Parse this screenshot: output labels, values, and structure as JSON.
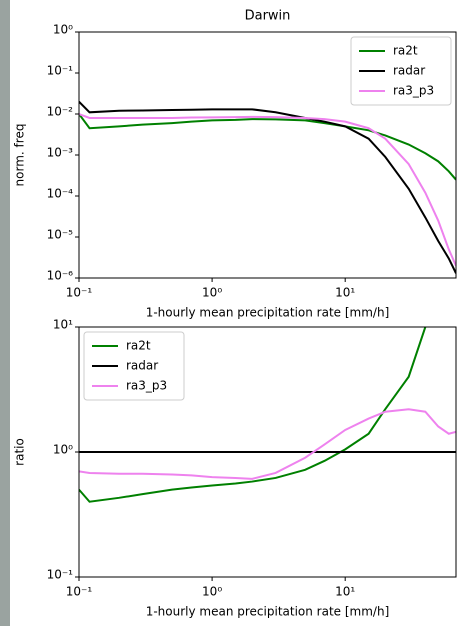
{
  "chart_data": [
    {
      "type": "line",
      "title": "Darwin",
      "xlabel": "1-hourly mean precipitation rate [mm/h]",
      "ylabel": "norm. freq",
      "x": [
        0.1,
        0.12,
        0.2,
        0.3,
        0.5,
        0.7,
        1,
        1.5,
        2,
        3,
        5,
        7,
        10,
        15,
        20,
        30,
        40,
        50,
        60,
        68
      ],
      "series": [
        {
          "name": "ra2t",
          "color": "#008000",
          "values": [
            0.01,
            0.0045,
            0.005,
            0.0055,
            0.006,
            0.0065,
            0.007,
            0.0072,
            0.0075,
            0.0074,
            0.007,
            0.006,
            0.005,
            0.004,
            0.003,
            0.0018,
            0.0011,
            0.0007,
            0.0004,
            0.00025
          ]
        },
        {
          "name": "radar",
          "color": "#000000",
          "values": [
            0.02,
            0.011,
            0.012,
            0.0122,
            0.0125,
            0.0127,
            0.013,
            0.013,
            0.013,
            0.011,
            0.008,
            0.0065,
            0.005,
            0.0025,
            0.0009,
            0.00015,
            3e-05,
            8e-06,
            3e-06,
            1.3e-06
          ]
        },
        {
          "name": "ra3_p3",
          "color": "#ee82ee",
          "values": [
            0.01,
            0.008,
            0.008,
            0.008,
            0.008,
            0.0082,
            0.0083,
            0.0084,
            0.0085,
            0.0084,
            0.008,
            0.0075,
            0.0065,
            0.0045,
            0.0025,
            0.0006,
            0.00012,
            2.5e-05,
            5e-06,
            2e-06
          ]
        }
      ],
      "xlim": [
        0.1,
        68
      ],
      "ylim": [
        1e-06,
        1
      ],
      "xscale": "log",
      "yscale": "log",
      "xticks": [
        {
          "value": 0.1,
          "label": "10⁻¹"
        },
        {
          "value": 1,
          "label": "10⁰"
        },
        {
          "value": 10,
          "label": "10¹"
        }
      ],
      "yticks": [
        {
          "value": 1e-06,
          "label": "10⁻⁶"
        },
        {
          "value": 1e-05,
          "label": "10⁻⁵"
        },
        {
          "value": 0.0001,
          "label": "10⁻⁴"
        },
        {
          "value": 0.001,
          "label": "10⁻³"
        },
        {
          "value": 0.01,
          "label": "10⁻²"
        },
        {
          "value": 0.1,
          "label": "10⁻¹"
        },
        {
          "value": 1,
          "label": "10⁰"
        }
      ],
      "legend": "upper right"
    },
    {
      "type": "line",
      "xlabel": "1-hourly mean precipitation rate [mm/h]",
      "ylabel": "ratio",
      "x": [
        0.1,
        0.12,
        0.2,
        0.3,
        0.5,
        0.7,
        1,
        1.5,
        2,
        3,
        5,
        7,
        10,
        15,
        20,
        30,
        40,
        50,
        60,
        68
      ],
      "series": [
        {
          "name": "ra2t",
          "color": "#008000",
          "values": [
            0.5,
            0.4,
            0.43,
            0.46,
            0.5,
            0.52,
            0.54,
            0.56,
            0.58,
            0.62,
            0.72,
            0.85,
            1.05,
            1.4,
            2.2,
            4,
            10,
            null,
            null,
            null
          ]
        },
        {
          "name": "radar",
          "color": "#000000",
          "values": [
            1,
            1,
            1,
            1,
            1,
            1,
            1,
            1,
            1,
            1,
            1,
            1,
            1,
            1,
            1,
            1,
            1,
            1,
            1,
            1
          ]
        },
        {
          "name": "ra3_p3",
          "color": "#ee82ee",
          "values": [
            0.7,
            0.68,
            0.67,
            0.67,
            0.66,
            0.65,
            0.63,
            0.62,
            0.61,
            0.68,
            0.9,
            1.15,
            1.5,
            1.85,
            2.1,
            2.2,
            2.1,
            1.6,
            1.4,
            1.45
          ]
        }
      ],
      "xlim": [
        0.1,
        68
      ],
      "ylim": [
        0.1,
        10
      ],
      "xscale": "log",
      "yscale": "log",
      "xticks": [
        {
          "value": 0.1,
          "label": "10⁻¹"
        },
        {
          "value": 1,
          "label": "10⁰"
        },
        {
          "value": 10,
          "label": "10¹"
        }
      ],
      "yticks": [
        {
          "value": 0.1,
          "label": "10⁻¹"
        },
        {
          "value": 1,
          "label": "10⁰"
        },
        {
          "value": 10,
          "label": "10¹"
        }
      ],
      "legend": "upper left"
    }
  ]
}
